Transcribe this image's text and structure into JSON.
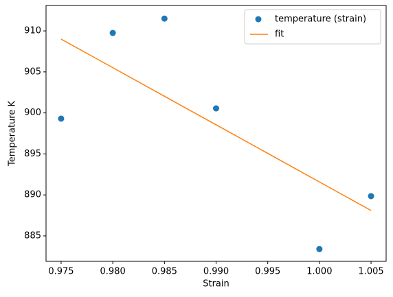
{
  "chart_data": {
    "type": "scatter",
    "xlabel": "Strain",
    "ylabel": "Temperature K",
    "xlim": [
      0.97354,
      1.00646
    ],
    "ylim": [
      881.9,
      913.1
    ],
    "xticks": [
      0.975,
      {
        "value": 0.98,
        "label": "0.980"
      },
      0.985,
      {
        "value": 0.99,
        "label": "0.990"
      },
      0.995,
      {
        "value": 1.0,
        "label": "1.000"
      },
      1.005
    ],
    "yticks": [
      885,
      890,
      895,
      900,
      905,
      910
    ],
    "legend": "upper right",
    "series": [
      {
        "name": "temperature (strain)",
        "type": "scatter",
        "color": "#1f77b4",
        "x": [
          0.975,
          0.98,
          0.985,
          0.99,
          1.0,
          1.005
        ],
        "values": [
          899.3,
          909.75,
          911.5,
          900.55,
          883.4,
          889.85
        ]
      },
      {
        "name": "fit",
        "type": "line",
        "color": "#ff7f0e",
        "x": [
          0.975,
          0.98,
          0.985,
          0.99,
          0.995,
          1.0,
          1.005
        ],
        "values": [
          909.0,
          905.52,
          902.03,
          898.55,
          895.07,
          891.58,
          888.1
        ]
      }
    ]
  }
}
